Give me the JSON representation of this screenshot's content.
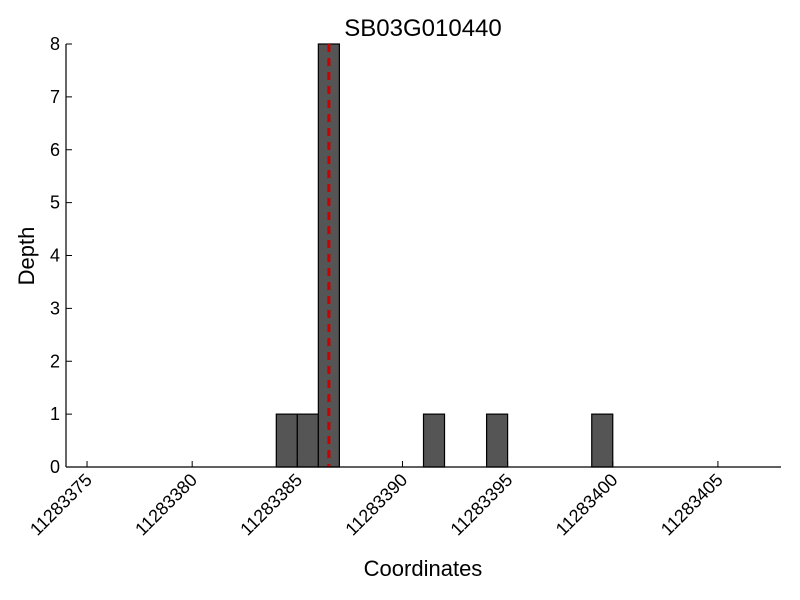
{
  "chart_data": {
    "type": "bar",
    "title": "SB03G010440",
    "xlabel": "Coordinates",
    "ylabel": "Depth",
    "xlim": [
      11283374,
      11283408
    ],
    "ylim": [
      0,
      8
    ],
    "x_ticks": [
      11283375,
      11283380,
      11283385,
      11283390,
      11283395,
      11283400,
      11283405
    ],
    "y_ticks": [
      0,
      1,
      2,
      3,
      4,
      5,
      6,
      7,
      8
    ],
    "bar_width": 1,
    "bars": [
      {
        "x": 11283384,
        "value": 1
      },
      {
        "x": 11283385,
        "value": 1
      },
      {
        "x": 11283386,
        "value": 8
      },
      {
        "x": 11283391,
        "value": 1
      },
      {
        "x": 11283394,
        "value": 1
      },
      {
        "x": 11283399,
        "value": 1
      }
    ],
    "reference_line": {
      "x": 11283386.5,
      "color": "#cc0000",
      "style": "dashed"
    },
    "colors": {
      "bar_fill": "#555555",
      "bar_edge": "#000000"
    },
    "grid": false
  }
}
